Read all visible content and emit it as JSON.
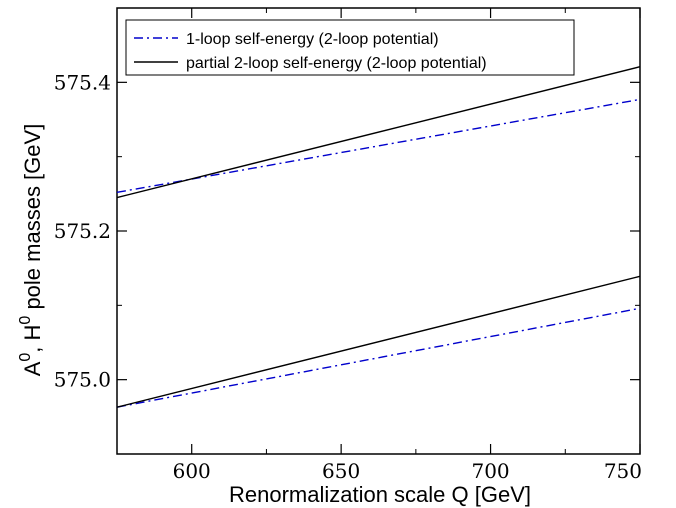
{
  "chart_data": {
    "type": "line",
    "xlabel": "Renormalization scale Q   [GeV]",
    "ylabel_parts": {
      "A": "A",
      "sup1": "0",
      "comma": ", ",
      "H": "H",
      "sup2": "0",
      "rest": "  pole masses  [GeV]"
    },
    "xlim": [
      575,
      750
    ],
    "ylim": [
      574.9,
      575.5
    ],
    "x_ticks": [
      600,
      650,
      700,
      750
    ],
    "y_ticks": [
      575.0,
      575.2,
      575.4
    ],
    "x_tick_labels": [
      "600",
      "650",
      "700",
      "750"
    ],
    "y_tick_labels": [
      "575.0",
      "575.2",
      "575.4"
    ],
    "grid": false,
    "legend_placement": "top-left",
    "series": [
      {
        "name": "1-loop self-energy (2-loop potential)",
        "style": "dash-dot",
        "color": "#0000cc",
        "lines": [
          {
            "x": [
              575,
              750
            ],
            "y": [
              575.252,
              575.377
            ]
          },
          {
            "x": [
              575,
              750
            ],
            "y": [
              574.963,
              575.096
            ]
          }
        ]
      },
      {
        "name": "partial 2-loop self-energy (2-loop potential)",
        "style": "solid",
        "color": "#000000",
        "lines": [
          {
            "x": [
              575,
              750
            ],
            "y": [
              575.245,
              575.421
            ]
          },
          {
            "x": [
              575,
              750
            ],
            "y": [
              574.963,
              575.139
            ]
          }
        ]
      }
    ]
  }
}
